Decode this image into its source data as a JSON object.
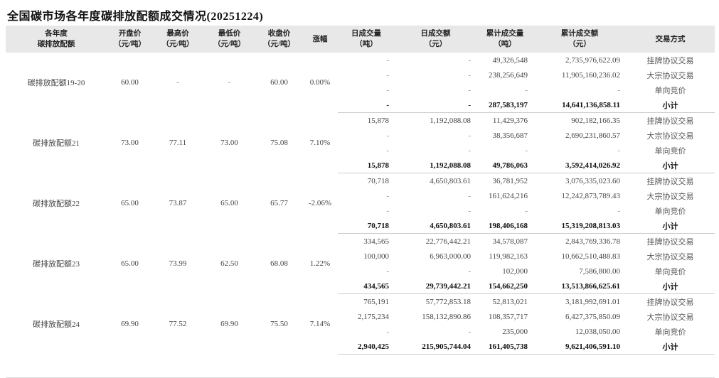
{
  "title": "全国碳市场各年度碳排放配额成交情况(20251224)",
  "headers": [
    [
      "各年度",
      "碳排放配额"
    ],
    [
      "开盘价",
      "（元/吨）"
    ],
    [
      "最高价",
      "（元/吨）"
    ],
    [
      "最低价",
      "（元/吨）"
    ],
    [
      "收盘价",
      "（元/吨）"
    ],
    [
      "涨幅"
    ],
    [
      "日成交量",
      "（吨）"
    ],
    [
      "日成交额",
      "（元）"
    ],
    [
      "累计成交量",
      "（吨）"
    ],
    [
      "累计成交额",
      "（元）"
    ],
    [
      "交易方式"
    ]
  ],
  "groups": [
    {
      "name": "碳排放配额19-20",
      "open": "60.00",
      "high": "-",
      "low": "-",
      "close": "60.00",
      "change": "0.00%",
      "rows": [
        {
          "daily_vol": "-",
          "daily_amt": "-",
          "cum_vol": "49,326,548",
          "cum_amt": "2,735,976,622.09",
          "method": "挂牌协议交易"
        },
        {
          "daily_vol": "-",
          "daily_amt": "-",
          "cum_vol": "238,256,649",
          "cum_amt": "11,905,160,236.02",
          "method": "大宗协议交易"
        },
        {
          "daily_vol": "-",
          "daily_amt": "-",
          "cum_vol": "-",
          "cum_amt": "-",
          "method": "单向竞价"
        },
        {
          "daily_vol": "-",
          "daily_amt": "-",
          "cum_vol": "287,583,197",
          "cum_amt": "14,641,136,858.11",
          "method": "小计"
        }
      ]
    },
    {
      "name": "碳排放配额21",
      "open": "73.00",
      "high": "77.11",
      "low": "73.00",
      "close": "75.08",
      "change": "7.10%",
      "rows": [
        {
          "daily_vol": "15,878",
          "daily_amt": "1,192,088.08",
          "cum_vol": "11,429,376",
          "cum_amt": "902,182,166.35",
          "method": "挂牌协议交易"
        },
        {
          "daily_vol": "-",
          "daily_amt": "-",
          "cum_vol": "38,356,687",
          "cum_amt": "2,690,231,860.57",
          "method": "大宗协议交易"
        },
        {
          "daily_vol": "-",
          "daily_amt": "-",
          "cum_vol": "-",
          "cum_amt": "-",
          "method": "单向竞价"
        },
        {
          "daily_vol": "15,878",
          "daily_amt": "1,192,088.08",
          "cum_vol": "49,786,063",
          "cum_amt": "3,592,414,026.92",
          "method": "小计"
        }
      ]
    },
    {
      "name": "碳排放配额22",
      "open": "65.00",
      "high": "73.87",
      "low": "65.00",
      "close": "65.77",
      "change": "-2.06%",
      "rows": [
        {
          "daily_vol": "70,718",
          "daily_amt": "4,650,803.61",
          "cum_vol": "36,781,952",
          "cum_amt": "3,076,335,023.60",
          "method": "挂牌协议交易"
        },
        {
          "daily_vol": "-",
          "daily_amt": "-",
          "cum_vol": "161,624,216",
          "cum_amt": "12,242,873,789.43",
          "method": "大宗协议交易"
        },
        {
          "daily_vol": "-",
          "daily_amt": "-",
          "cum_vol": "-",
          "cum_amt": "-",
          "method": "单向竞价"
        },
        {
          "daily_vol": "70,718",
          "daily_amt": "4,650,803.61",
          "cum_vol": "198,406,168",
          "cum_amt": "15,319,208,813.03",
          "method": "小计"
        }
      ]
    },
    {
      "name": "碳排放配额23",
      "open": "65.00",
      "high": "73.99",
      "low": "62.50",
      "close": "68.08",
      "change": "1.22%",
      "rows": [
        {
          "daily_vol": "334,565",
          "daily_amt": "22,776,442.21",
          "cum_vol": "34,578,087",
          "cum_amt": "2,843,769,336.78",
          "method": "挂牌协议交易"
        },
        {
          "daily_vol": "100,000",
          "daily_amt": "6,963,000.00",
          "cum_vol": "119,982,163",
          "cum_amt": "10,662,510,488.83",
          "method": "大宗协议交易"
        },
        {
          "daily_vol": "-",
          "daily_amt": "-",
          "cum_vol": "102,000",
          "cum_amt": "7,586,800.00",
          "method": "单向竞价"
        },
        {
          "daily_vol": "434,565",
          "daily_amt": "29,739,442.21",
          "cum_vol": "154,662,250",
          "cum_amt": "13,513,866,625.61",
          "method": "小计"
        }
      ]
    },
    {
      "name": "碳排放配额24",
      "open": "69.90",
      "high": "77.52",
      "low": "69.90",
      "close": "75.50",
      "change": "7.14%",
      "rows": [
        {
          "daily_vol": "765,191",
          "daily_amt": "57,772,853.18",
          "cum_vol": "52,813,021",
          "cum_amt": "3,181,992,691.01",
          "method": "挂牌协议交易"
        },
        {
          "daily_vol": "2,175,234",
          "daily_amt": "158,132,890.86",
          "cum_vol": "108,357,717",
          "cum_amt": "6,427,375,850.09",
          "method": "大宗协议交易"
        },
        {
          "daily_vol": "-",
          "daily_amt": "-",
          "cum_vol": "235,000",
          "cum_amt": "12,038,050.00",
          "method": "单向竞价"
        },
        {
          "daily_vol": "2,940,425",
          "daily_amt": "215,905,744.04",
          "cum_vol": "161,405,738",
          "cum_amt": "9,621,406,591.10",
          "method": "小计"
        }
      ]
    }
  ]
}
